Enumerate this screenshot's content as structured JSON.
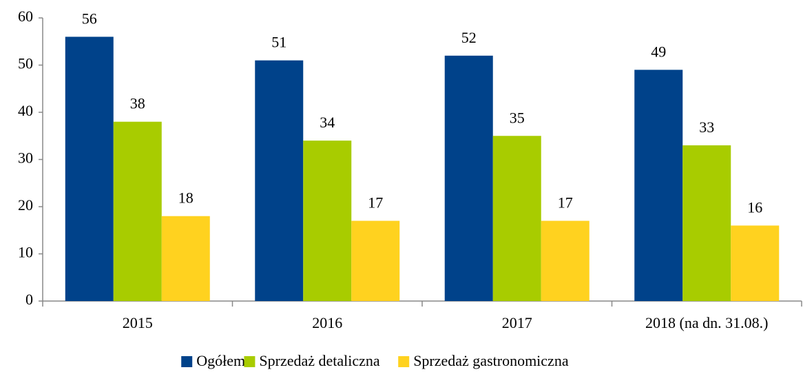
{
  "chart_data": {
    "type": "bar",
    "categories": [
      "2015",
      "2016",
      "2017",
      "2018 (na dn. 31.08.)"
    ],
    "series": [
      {
        "name": "Ogółem",
        "color": "#00428a",
        "values": [
          56,
          51,
          52,
          49
        ]
      },
      {
        "name": "Sprzedaż detaliczna",
        "color": "#a8cc00",
        "values": [
          38,
          34,
          35,
          33
        ]
      },
      {
        "name": "Sprzedaż gastronomiczna",
        "color": "#ffd21f",
        "values": [
          18,
          17,
          17,
          16
        ]
      }
    ],
    "ylim": [
      0,
      60
    ],
    "yticks": [
      0,
      10,
      20,
      30,
      40,
      50,
      60
    ],
    "grid": false,
    "legend": "bottom"
  }
}
